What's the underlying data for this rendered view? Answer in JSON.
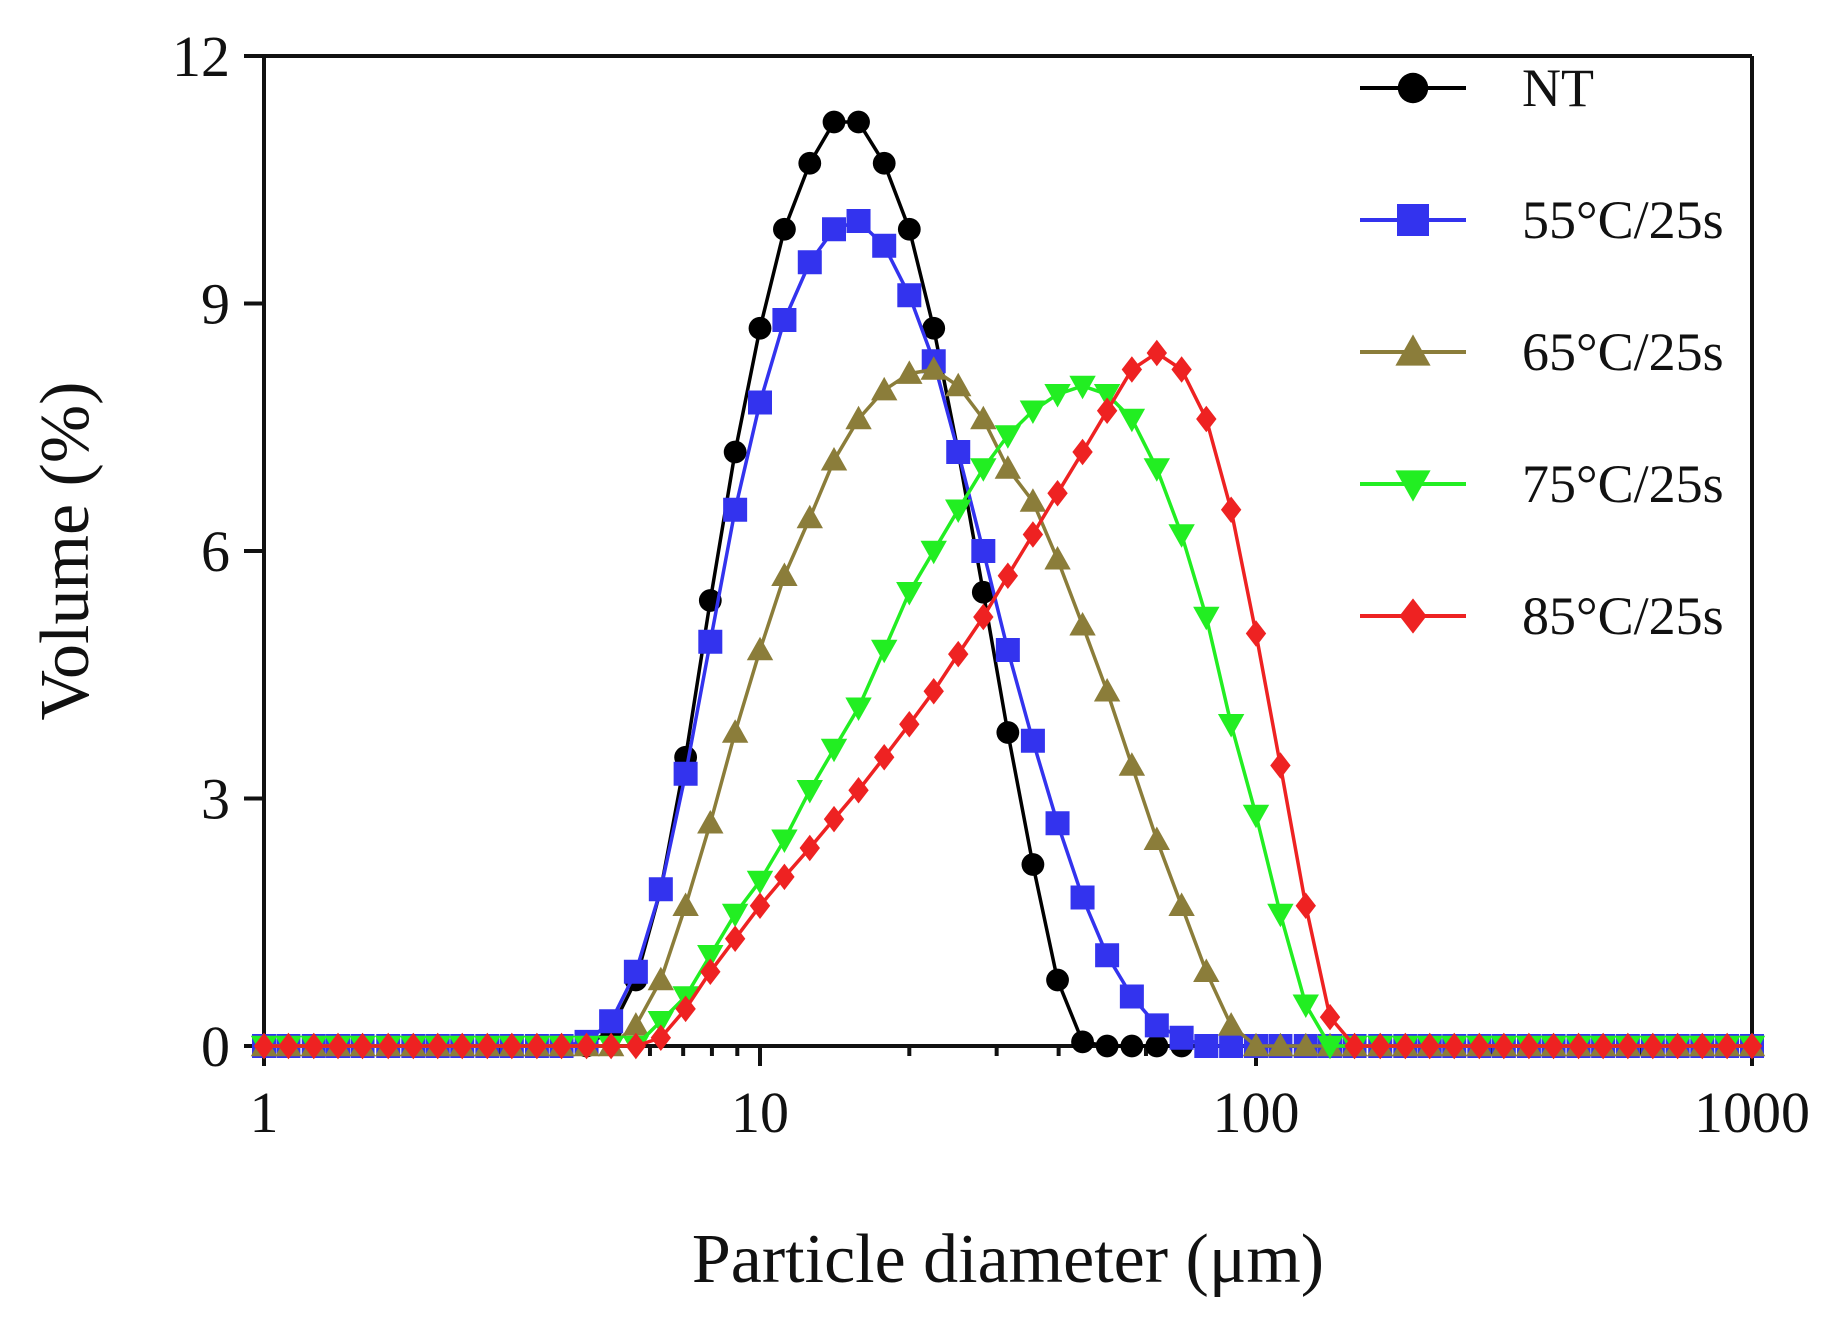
{
  "chart_data": {
    "type": "line",
    "title": "",
    "xlabel": "Particle diameter (μm)",
    "ylabel": "Volume (%)",
    "xscale": "log",
    "xlim": [
      1,
      1000
    ],
    "ylim": [
      0,
      12
    ],
    "xticks": [
      1,
      10,
      100,
      1000
    ],
    "xtick_labels": [
      "1",
      "10",
      "100",
      "1000"
    ],
    "yticks": [
      0,
      3,
      6,
      9,
      12
    ],
    "ytick_labels": [
      "0",
      "3",
      "6",
      "9",
      "12"
    ],
    "grid": false,
    "legend_position": "top-right",
    "x": [
      1.0,
      1.12,
      1.26,
      1.41,
      1.58,
      1.78,
      2.0,
      2.24,
      2.51,
      2.82,
      3.16,
      3.55,
      3.98,
      4.47,
      5.01,
      5.62,
      6.31,
      7.08,
      7.94,
      8.91,
      10.0,
      11.2,
      12.6,
      14.1,
      15.8,
      17.8,
      20.0,
      22.4,
      25.1,
      28.2,
      31.6,
      35.5,
      39.8,
      44.7,
      50.1,
      56.2,
      63.1,
      70.8,
      79.4,
      89.1,
      100,
      112,
      126,
      141,
      158,
      178,
      200,
      224,
      251,
      282,
      316,
      355,
      398,
      447,
      501,
      562,
      631,
      708,
      794,
      891,
      1000
    ],
    "series": [
      {
        "name": "NT",
        "color": "#000000",
        "marker": "circle",
        "values": [
          0,
          0,
          0,
          0,
          0,
          0,
          0,
          0,
          0,
          0,
          0,
          0,
          0,
          0,
          0.2,
          0.8,
          1.9,
          3.5,
          5.4,
          7.2,
          8.7,
          9.9,
          10.7,
          11.2,
          11.2,
          10.7,
          9.9,
          8.7,
          7.2,
          5.5,
          3.8,
          2.2,
          0.8,
          0.05,
          0,
          0,
          0,
          0,
          0,
          0,
          0,
          0,
          0,
          0,
          0,
          0,
          0,
          0,
          0,
          0,
          0,
          0,
          0,
          0,
          0,
          0,
          0,
          0,
          0,
          0,
          0
        ]
      },
      {
        "name": "55°C/25s",
        "color": "#3333ee",
        "marker": "square",
        "values": [
          0,
          0,
          0,
          0,
          0,
          0,
          0,
          0,
          0,
          0,
          0,
          0,
          0,
          0.05,
          0.3,
          0.9,
          1.9,
          3.3,
          4.9,
          6.5,
          7.8,
          8.8,
          9.5,
          9.9,
          10.0,
          9.7,
          9.1,
          8.3,
          7.2,
          6.0,
          4.8,
          3.7,
          2.7,
          1.8,
          1.1,
          0.6,
          0.25,
          0.1,
          0,
          0,
          0,
          0,
          0,
          0,
          0,
          0,
          0,
          0,
          0,
          0,
          0,
          0,
          0,
          0,
          0,
          0,
          0,
          0,
          0,
          0,
          0
        ]
      },
      {
        "name": "65°C/25s",
        "color": "#8b7d3a",
        "marker": "triangle-up",
        "values": [
          0,
          0,
          0,
          0,
          0,
          0,
          0,
          0,
          0,
          0,
          0,
          0,
          0,
          0,
          0,
          0.25,
          0.8,
          1.7,
          2.7,
          3.8,
          4.8,
          5.7,
          6.4,
          7.1,
          7.6,
          7.95,
          8.15,
          8.2,
          8.0,
          7.6,
          7.0,
          6.6,
          5.9,
          5.1,
          4.3,
          3.4,
          2.5,
          1.7,
          0.9,
          0.25,
          0,
          0,
          0,
          0,
          0,
          0,
          0,
          0,
          0,
          0,
          0,
          0,
          0,
          0,
          0,
          0,
          0,
          0,
          0,
          0,
          0
        ]
      },
      {
        "name": "75°C/25s",
        "color": "#22ee22",
        "marker": "triangle-down",
        "values": [
          0,
          0,
          0,
          0,
          0,
          0,
          0,
          0,
          0,
          0,
          0,
          0,
          0,
          0,
          0,
          0,
          0.3,
          0.6,
          1.1,
          1.6,
          2.0,
          2.5,
          3.1,
          3.6,
          4.1,
          4.8,
          5.5,
          6.0,
          6.5,
          7.0,
          7.4,
          7.7,
          7.9,
          8.0,
          7.9,
          7.6,
          7.0,
          6.2,
          5.2,
          3.9,
          2.8,
          1.6,
          0.5,
          0,
          0,
          0,
          0,
          0,
          0,
          0,
          0,
          0,
          0,
          0,
          0,
          0,
          0,
          0,
          0,
          0,
          0
        ]
      },
      {
        "name": "85°C/25s",
        "color": "#ee2222",
        "marker": "diamond",
        "values": [
          0,
          0,
          0,
          0,
          0,
          0,
          0,
          0,
          0,
          0,
          0,
          0,
          0,
          0,
          0,
          0,
          0.1,
          0.45,
          0.9,
          1.3,
          1.7,
          2.05,
          2.4,
          2.75,
          3.1,
          3.5,
          3.9,
          4.3,
          4.75,
          5.2,
          5.7,
          6.2,
          6.7,
          7.2,
          7.7,
          8.2,
          8.4,
          8.2,
          7.6,
          6.5,
          5.0,
          3.4,
          1.7,
          0.35,
          0,
          0,
          0,
          0,
          0,
          0,
          0,
          0,
          0,
          0,
          0,
          0,
          0,
          0,
          0,
          0,
          0
        ]
      }
    ]
  }
}
